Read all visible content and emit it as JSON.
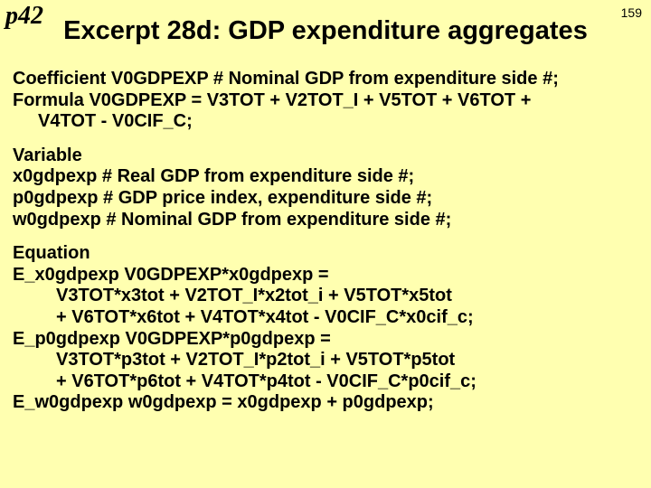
{
  "meta": {
    "page_label": "p42",
    "page_number": "159",
    "title": "Excerpt 28d: GDP expenditure aggregates"
  },
  "blocks": {
    "coef": {
      "l1": "Coefficient V0GDPEXP # Nominal GDP from expenditure side #;",
      "l2": "Formula    V0GDPEXP  = V3TOT + V2TOT_I + V5TOT + V6TOT +",
      "l3": "V4TOT - V0CIF_C;"
    },
    "vars": {
      "h": "Variable",
      "l1": " x0gdpexp   # Real GDP from expenditure side #;",
      "l2": " p0gdpexp   # GDP price index, expenditure side #;",
      "l3": " w0gdpexp  # Nominal GDP from expenditure side #;"
    },
    "eqn": {
      "h": "Equation",
      "l1": " E_x0gdpexp   V0GDPEXP*x0gdpexp =",
      "l2": "V3TOT*x3tot + V2TOT_I*x2tot_i + V5TOT*x5tot",
      "l3": "+ V6TOT*x6tot  + V4TOT*x4tot - V0CIF_C*x0cif_c;",
      "l4": " E_p0gdpexp V0GDPEXP*p0gdpexp =",
      "l5": "V3TOT*p3tot + V2TOT_I*p2tot_i + V5TOT*p5tot",
      "l6": "+ V6TOT*p6tot  + V4TOT*p4tot - V0CIF_C*p0cif_c;",
      "l7": " E_w0gdpexp w0gdpexp = x0gdpexp + p0gdpexp;"
    }
  },
  "style": {
    "background": "#ffffb0",
    "text_color": "#000000",
    "title_fontsize": 29,
    "body_fontsize": 20,
    "page_label_fontsize": 28,
    "page_num_fontsize": 14,
    "font_family_body": "Arial",
    "font_family_label": "Times New Roman"
  }
}
